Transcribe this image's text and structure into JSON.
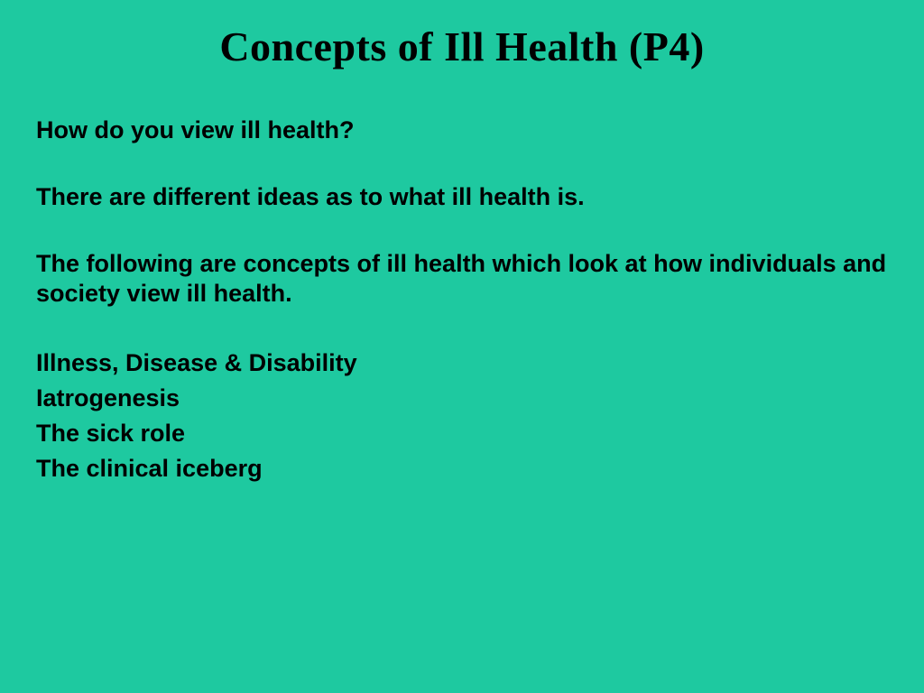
{
  "slide": {
    "background_color": "#1ec9a0",
    "title": {
      "text": "Concepts of Ill Health (P4)",
      "font_family": "Times New Roman",
      "font_weight": "bold",
      "font_size_pt": 34,
      "color": "#000000",
      "align": "center"
    },
    "body": {
      "font_family": "Century Gothic",
      "font_weight": "bold",
      "font_size_pt": 20,
      "color": "#000000",
      "paragraphs": [
        "How do you view ill health?",
        "There are different ideas as to what ill health is.",
        "The following are concepts of ill health which look at how individuals and society view ill health."
      ],
      "list_items": [
        "Illness, Disease & Disability",
        "Iatrogenesis",
        "The sick role",
        "The clinical iceberg"
      ]
    }
  }
}
